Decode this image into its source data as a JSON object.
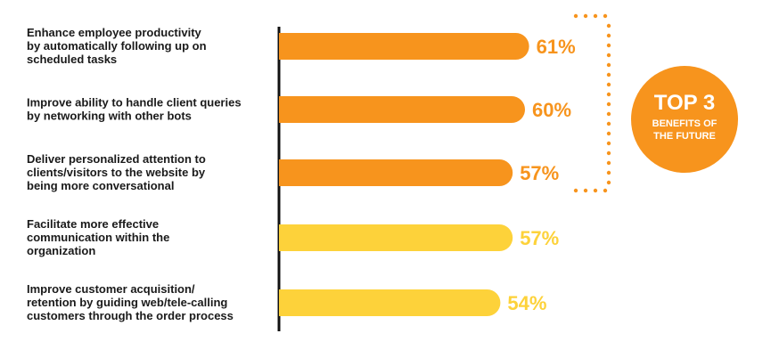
{
  "chart_data": {
    "type": "bar",
    "orientation": "horizontal",
    "categories": [
      [
        "Enhance employee productivity",
        "by automatically following up on",
        "scheduled tasks"
      ],
      [
        "Improve ability to handle client queries",
        "by networking with other bots"
      ],
      [
        "Deliver personalized attention to",
        "clients/visitors to the website by",
        "being more conversational"
      ],
      [
        "Facilitate more effective",
        "communication within the",
        "organization"
      ],
      [
        "Improve customer acquisition/",
        "retention by guiding web/tele-calling",
        "customers through the order process"
      ]
    ],
    "values": [
      61,
      60,
      57,
      57,
      54
    ],
    "value_labels": [
      "61%",
      "60%",
      "57%",
      "57%",
      "54%"
    ],
    "highlight_count": 3,
    "colors": {
      "highlight": "#f7941d",
      "normal": "#fdd23a",
      "axis": "#111111",
      "dots": "#f7941d",
      "badge": "#f7941d"
    },
    "badge": {
      "title": "TOP 3",
      "subtitle_lines": [
        "BENEFITS OF",
        "THE FUTURE"
      ]
    }
  }
}
